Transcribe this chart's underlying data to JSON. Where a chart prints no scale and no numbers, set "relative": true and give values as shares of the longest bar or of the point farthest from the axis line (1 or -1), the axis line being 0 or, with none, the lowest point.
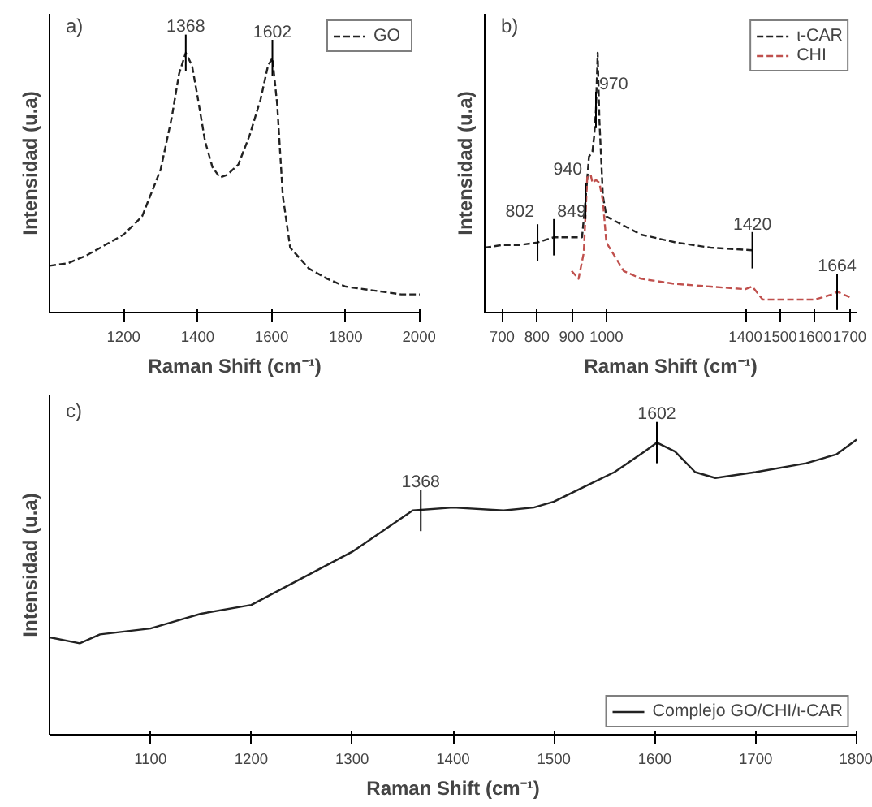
{
  "chart_data": [
    {
      "type": "line",
      "relative": true,
      "xlabel": "Raman Shift (cm⁻¹)",
      "ylabel": "Intensidad (u.a)",
      "xlim": [
        1000,
        2000
      ],
      "xticks": [
        1200,
        1400,
        1600,
        1800,
        2000
      ],
      "grid": false,
      "legend": "top right",
      "marker": "none",
      "line_style": "dashed",
      "annotations": [
        "a)",
        {
          "text": "1368",
          "x": 1368,
          "y": 1.0
        },
        {
          "text": "1602",
          "x": 1602,
          "y": 0.98
        }
      ],
      "series": [
        {
          "name": "GO",
          "color": "#222222",
          "x": [
            1000,
            1050,
            1100,
            1150,
            1200,
            1250,
            1300,
            1330,
            1350,
            1368,
            1385,
            1400,
            1420,
            1440,
            1460,
            1480,
            1510,
            1540,
            1570,
            1590,
            1602,
            1615,
            1630,
            1650,
            1700,
            1750,
            1800,
            1850,
            1900,
            1950,
            2000
          ],
          "values": [
            0.18,
            0.19,
            0.22,
            0.26,
            0.3,
            0.37,
            0.55,
            0.75,
            0.92,
            1.0,
            0.95,
            0.83,
            0.66,
            0.56,
            0.52,
            0.53,
            0.57,
            0.68,
            0.82,
            0.95,
            0.98,
            0.8,
            0.45,
            0.25,
            0.17,
            0.13,
            0.1,
            0.09,
            0.08,
            0.07,
            0.07
          ]
        }
      ]
    },
    {
      "type": "line",
      "relative": true,
      "xlabel": "Raman Shift (cm⁻¹)",
      "ylabel": "Intensidad (u.a)",
      "xlim": [
        650,
        1720
      ],
      "xticks": [
        700,
        800,
        900,
        1000,
        1400,
        1500,
        1600,
        1700
      ],
      "grid": false,
      "legend": "top right",
      "marker": "none",
      "line_style": "dashed",
      "annotations": [
        "b)",
        {
          "text": "802",
          "x": 802,
          "y": 0.27
        },
        {
          "text": "849",
          "x": 849,
          "y": 0.29
        },
        {
          "text": "940",
          "x": 940,
          "y": 0.43
        },
        {
          "text": "970",
          "x": 970,
          "y": 0.78
        },
        {
          "text": "1420",
          "x": 1420,
          "y": 0.24
        },
        {
          "text": "1664",
          "x": 1664,
          "y": 0.08
        }
      ],
      "series": [
        {
          "name": "ι-CAR",
          "color": "#222222",
          "x": [
            650,
            700,
            750,
            802,
            849,
            900,
            930,
            940,
            950,
            960,
            965,
            970,
            975,
            980,
            990,
            1000,
            1100,
            1200,
            1300,
            1420
          ],
          "values": [
            0.25,
            0.26,
            0.26,
            0.27,
            0.29,
            0.29,
            0.29,
            0.43,
            0.6,
            0.62,
            0.68,
            0.78,
            1.0,
            0.74,
            0.45,
            0.37,
            0.3,
            0.27,
            0.25,
            0.24
          ]
        },
        {
          "name": "CHI",
          "color": "#c0504d",
          "x": [
            900,
            920,
            935,
            945,
            955,
            960,
            970,
            980,
            990,
            1000,
            1050,
            1100,
            1200,
            1300,
            1400,
            1420,
            1450,
            1500,
            1600,
            1650,
            1664,
            1700
          ],
          "values": [
            0.16,
            0.13,
            0.23,
            0.52,
            0.53,
            0.5,
            0.51,
            0.5,
            0.43,
            0.27,
            0.16,
            0.13,
            0.11,
            0.1,
            0.09,
            0.1,
            0.05,
            0.05,
            0.05,
            0.07,
            0.08,
            0.06
          ]
        }
      ]
    },
    {
      "type": "line",
      "relative": true,
      "xlabel": "Raman Shift (cm⁻¹)",
      "ylabel": "Intensidad (u.a)",
      "xlim": [
        1000,
        1800
      ],
      "xticks": [
        1100,
        1200,
        1300,
        1400,
        1500,
        1600,
        1700,
        1800
      ],
      "grid": false,
      "legend": "bottom right",
      "marker": "none",
      "line_style": "solid",
      "annotations": [
        "c)",
        {
          "text": "1368",
          "x": 1368,
          "y": 0.76
        },
        {
          "text": "1602",
          "x": 1602,
          "y": 0.99
        }
      ],
      "series": [
        {
          "name": "Complejo GO/CHI/ι-CAR",
          "color": "#222222",
          "x": [
            1000,
            1030,
            1050,
            1100,
            1150,
            1200,
            1250,
            1300,
            1330,
            1360,
            1400,
            1450,
            1480,
            1500,
            1530,
            1560,
            1590,
            1602,
            1620,
            1640,
            1660,
            1700,
            1750,
            1780,
            1800
          ],
          "values": [
            0.33,
            0.31,
            0.34,
            0.36,
            0.41,
            0.44,
            0.53,
            0.62,
            0.69,
            0.76,
            0.77,
            0.76,
            0.77,
            0.79,
            0.84,
            0.89,
            0.96,
            0.99,
            0.96,
            0.89,
            0.87,
            0.89,
            0.92,
            0.95,
            1.0
          ]
        }
      ]
    }
  ]
}
